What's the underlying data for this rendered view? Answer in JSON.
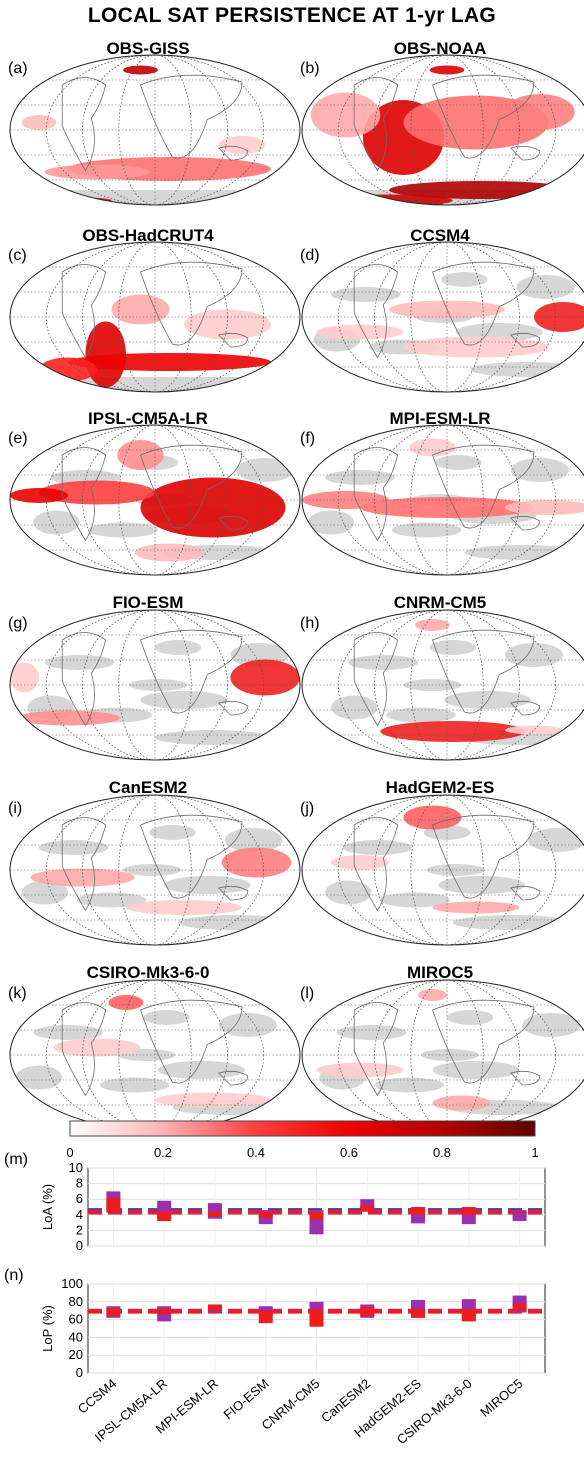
{
  "title": "LOCAL SAT PERSISTENCE AT 1-yr LAG",
  "maps": [
    {
      "letter": "(a)",
      "name": "OBS-GISS"
    },
    {
      "letter": "(b)",
      "name": "OBS-NOAA"
    },
    {
      "letter": "(c)",
      "name": "OBS-HadCRUT4"
    },
    {
      "letter": "(d)",
      "name": "CCSM4"
    },
    {
      "letter": "(e)",
      "name": "IPSL-CM5A-LR"
    },
    {
      "letter": "(f)",
      "name": "MPI-ESM-LR"
    },
    {
      "letter": "(g)",
      "name": "FIO-ESM"
    },
    {
      "letter": "(h)",
      "name": "CNRM-CM5"
    },
    {
      "letter": "(i)",
      "name": "CanESM2"
    },
    {
      "letter": "(j)",
      "name": "HadGEM2-ES"
    },
    {
      "letter": "(k)",
      "name": "CSIRO-Mk3-6-0"
    },
    {
      "letter": "(l)",
      "name": "MIROC5"
    }
  ],
  "colorbar": {
    "ticks": [
      "0",
      "0.2",
      "0.4",
      "0.6",
      "0.8",
      "1"
    ],
    "colors": [
      "#ffffff",
      "#ffb3b3",
      "#ff4040",
      "#ee0000",
      "#b00000",
      "#600000"
    ]
  },
  "chart_data": [
    {
      "type": "bar",
      "letter": "(m)",
      "ylabel": "LoA (%)",
      "ylim": [
        0,
        10
      ],
      "yticks": [
        "0",
        "2",
        "4",
        "6",
        "8",
        "10"
      ],
      "reference": {
        "blue": 4.6,
        "magenta": 4.3,
        "red": 4.4
      },
      "categories": [
        "CCSM4",
        "IPSL-CM5A-LR",
        "MPI-ESM-LR",
        "FIO-ESM",
        "CNRM-CM5",
        "CanESM2",
        "HadGEM2-ES",
        "CSIRO-Mk3-6-0",
        "MIROC5"
      ],
      "series": [
        {
          "color": "#9b2fae",
          "ranges": [
            [
              4.3,
              7.0
            ],
            [
              4.2,
              5.8
            ],
            [
              3.5,
              5.5
            ],
            [
              2.8,
              4.6
            ],
            [
              1.5,
              4.6
            ],
            [
              4.4,
              6.0
            ],
            [
              2.9,
              4.6
            ],
            [
              2.8,
              4.6
            ],
            [
              3.2,
              4.6
            ]
          ]
        },
        {
          "color": "#ee1c1c",
          "ranges": [
            [
              4.3,
              6.2
            ],
            [
              3.2,
              4.4
            ],
            [
              3.8,
              4.4
            ],
            [
              3.6,
              4.4
            ],
            [
              3.4,
              4.4
            ],
            [
              4.4,
              5.2
            ],
            [
              4.0,
              5.0
            ],
            [
              4.0,
              5.0
            ],
            [
              4.2,
              4.4
            ]
          ]
        }
      ]
    },
    {
      "type": "bar",
      "letter": "(n)",
      "ylabel": "LoP (%)",
      "ylim": [
        0,
        100
      ],
      "yticks": [
        "0",
        "20",
        "40",
        "60",
        "80",
        "100"
      ],
      "reference": {
        "magenta": 70,
        "red": 69
      },
      "categories": [
        "CCSM4",
        "IPSL-CM5A-LR",
        "MPI-ESM-LR",
        "FIO-ESM",
        "CNRM-CM5",
        "CanESM2",
        "HadGEM2-ES",
        "CSIRO-Mk3-6-0",
        "MIROC5"
      ],
      "series": [
        {
          "color": "#9b2fae",
          "ranges": [
            [
              62,
              75
            ],
            [
              58,
              75
            ],
            [
              68,
              76
            ],
            [
              65,
              75
            ],
            [
              62,
              80
            ],
            [
              62,
              77
            ],
            [
              62,
              82
            ],
            [
              62,
              83
            ],
            [
              68,
              87
            ]
          ]
        },
        {
          "color": "#ee1c1c",
          "ranges": [
            [
              64,
              73
            ],
            [
              66,
              72
            ],
            [
              70,
              77
            ],
            [
              56,
              70
            ],
            [
              52,
              72
            ],
            [
              64,
              74
            ],
            [
              62,
              72
            ],
            [
              58,
              72
            ],
            [
              70,
              78
            ]
          ]
        }
      ]
    }
  ]
}
